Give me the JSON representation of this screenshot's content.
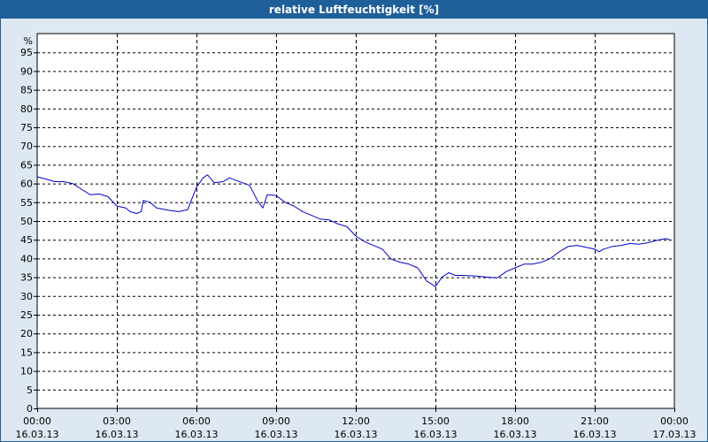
{
  "window": {
    "title": "relative Luftfeuchtigkeit [%]"
  },
  "colors": {
    "titlebar": "#1f5f99",
    "background": "#dde8f3",
    "plot_background": "#ffffff",
    "line": "#0000cc",
    "grid": "#000000"
  },
  "chart_data": {
    "type": "line",
    "title": "relative Luftfeuchtigkeit [%]",
    "ylabel": "%",
    "xlabel": "",
    "ylim": [
      0,
      100
    ],
    "y_ticks": [
      0,
      5,
      10,
      15,
      20,
      25,
      30,
      35,
      40,
      45,
      50,
      55,
      60,
      65,
      70,
      75,
      80,
      85,
      90,
      95
    ],
    "xlim": [
      "16.03.13 00:00",
      "17.03.13 00:00"
    ],
    "x_ticks": [
      {
        "time": "00:00",
        "date": "16.03.13"
      },
      {
        "time": "03:00",
        "date": "16.03.13"
      },
      {
        "time": "06:00",
        "date": "16.03.13"
      },
      {
        "time": "09:00",
        "date": "16.03.13"
      },
      {
        "time": "12:00",
        "date": "16.03.13"
      },
      {
        "time": "15:00",
        "date": "16.03.13"
      },
      {
        "time": "18:00",
        "date": "16.03.13"
      },
      {
        "time": "21:00",
        "date": "16.03.13"
      },
      {
        "time": "00:00",
        "date": "17.03.13"
      }
    ],
    "grid": true,
    "series": [
      {
        "values": [
          [
            "16.03.13 00:00",
            61.8
          ],
          [
            "16.03.13 00:20",
            61.2
          ],
          [
            "16.03.13 00:40",
            60.5
          ],
          [
            "16.03.13 01:00",
            60.5
          ],
          [
            "16.03.13 01:20",
            60.0
          ],
          [
            "16.03.13 01:40",
            58.5
          ],
          [
            "16.03.13 02:00",
            57.0
          ],
          [
            "16.03.13 02:20",
            57.2
          ],
          [
            "16.03.13 02:40",
            56.5
          ],
          [
            "16.03.13 03:00",
            54.0
          ],
          [
            "16.03.13 03:20",
            53.5
          ],
          [
            "16.03.13 03:30",
            52.5
          ],
          [
            "16.03.13 03:45",
            52.0
          ],
          [
            "16.03.13 03:55",
            52.5
          ],
          [
            "16.03.13 04:00",
            55.5
          ],
          [
            "16.03.13 04:15",
            55.0
          ],
          [
            "16.03.13 04:30",
            53.5
          ],
          [
            "16.03.13 05:00",
            52.8
          ],
          [
            "16.03.13 05:20",
            52.5
          ],
          [
            "16.03.13 05:40",
            53.0
          ],
          [
            "16.03.13 06:00",
            59.0
          ],
          [
            "16.03.13 06:15",
            61.5
          ],
          [
            "16.03.13 06:25",
            62.3
          ],
          [
            "16.03.13 06:40",
            60.2
          ],
          [
            "16.03.13 07:00",
            60.5
          ],
          [
            "16.03.13 07:15",
            61.5
          ],
          [
            "16.03.13 07:30",
            60.8
          ],
          [
            "16.03.13 08:00",
            59.5
          ],
          [
            "16.03.13 08:20",
            55.0
          ],
          [
            "16.03.13 08:30",
            53.5
          ],
          [
            "16.03.13 08:40",
            57.0
          ],
          [
            "16.03.13 09:00",
            56.8
          ],
          [
            "16.03.13 09:20",
            55.0
          ],
          [
            "16.03.13 09:40",
            54.0
          ],
          [
            "16.03.13 10:00",
            52.5
          ],
          [
            "16.03.13 10:20",
            51.5
          ],
          [
            "16.03.13 10:40",
            50.5
          ],
          [
            "16.03.13 11:00",
            50.3
          ],
          [
            "16.03.13 11:20",
            49.2
          ],
          [
            "16.03.13 11:40",
            48.5
          ],
          [
            "16.03.13 12:00",
            46.0
          ],
          [
            "16.03.13 12:20",
            44.5
          ],
          [
            "16.03.13 12:40",
            43.5
          ],
          [
            "16.03.13 13:00",
            42.5
          ],
          [
            "16.03.13 13:20",
            39.8
          ],
          [
            "16.03.13 13:40",
            39.0
          ],
          [
            "16.03.13 14:00",
            38.5
          ],
          [
            "16.03.13 14:20",
            37.5
          ],
          [
            "16.03.13 14:40",
            34.0
          ],
          [
            "16.03.13 15:00",
            32.5
          ],
          [
            "16.03.13 15:15",
            35.0
          ],
          [
            "16.03.13 15:30",
            36.2
          ],
          [
            "16.03.13 15:45",
            35.5
          ],
          [
            "16.03.13 16:00",
            35.5
          ],
          [
            "16.03.13 16:30",
            35.3
          ],
          [
            "16.03.13 17:00",
            35.0
          ],
          [
            "16.03.13 17:20",
            34.8
          ],
          [
            "16.03.13 17:40",
            36.5
          ],
          [
            "16.03.13 18:00",
            37.5
          ],
          [
            "16.03.13 18:20",
            38.5
          ],
          [
            "16.03.13 18:40",
            38.5
          ],
          [
            "16.03.13 19:00",
            39.0
          ],
          [
            "16.03.13 19:20",
            40.0
          ],
          [
            "16.03.13 19:40",
            41.8
          ],
          [
            "16.03.13 20:00",
            43.2
          ],
          [
            "16.03.13 20:20",
            43.5
          ],
          [
            "16.03.13 20:40",
            43.0
          ],
          [
            "16.03.13 21:00",
            42.5
          ],
          [
            "16.03.13 21:10",
            41.8
          ],
          [
            "16.03.13 21:20",
            42.5
          ],
          [
            "16.03.13 21:40",
            43.2
          ],
          [
            "16.03.13 22:00",
            43.5
          ],
          [
            "16.03.13 22:20",
            44.0
          ],
          [
            "16.03.13 22:40",
            43.8
          ],
          [
            "16.03.13 23:00",
            44.2
          ],
          [
            "16.03.13 23:20",
            44.8
          ],
          [
            "16.03.13 23:40",
            45.3
          ],
          [
            "16.03.13 23:50",
            45.0
          ]
        ]
      }
    ]
  }
}
